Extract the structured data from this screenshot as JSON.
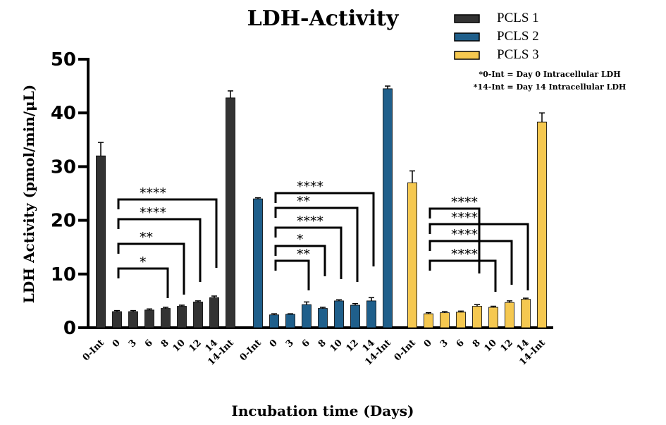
{
  "chart_data": {
    "type": "bar",
    "title": "LDH-Activity",
    "ylabel": "LDH Activity (pmol/min/μL)",
    "xlabel": "Incubation time (Days)",
    "ylim": [
      0,
      50
    ],
    "yticks": [
      0,
      10,
      20,
      30,
      40,
      50
    ],
    "categories": [
      "0-Int",
      "0",
      "3",
      "6",
      "8",
      "10",
      "12",
      "14",
      "14-Int"
    ],
    "legend_position": "top-right",
    "series": [
      {
        "name": "PCLS 1",
        "color": "#333333",
        "values": [
          32.0,
          3.0,
          3.0,
          3.3,
          3.6,
          4.0,
          4.8,
          5.6,
          42.8
        ],
        "errors": [
          2.5,
          0.2,
          0.2,
          0.2,
          0.2,
          0.2,
          0.2,
          0.3,
          1.3
        ],
        "significance": [
          {
            "from": "0",
            "to": "8",
            "label": "*"
          },
          {
            "from": "0",
            "to": "10",
            "label": "**"
          },
          {
            "from": "0",
            "to": "12",
            "label": "****"
          },
          {
            "from": "0",
            "to": "14",
            "label": "****"
          }
        ]
      },
      {
        "name": "PCLS 2",
        "color": "#1f5f8b",
        "values": [
          24.0,
          2.4,
          2.5,
          4.3,
          3.6,
          5.0,
          4.2,
          5.0,
          44.5
        ],
        "errors": [
          0.2,
          0.2,
          0.1,
          0.5,
          0.2,
          0.2,
          0.3,
          0.6,
          0.5
        ],
        "significance": [
          {
            "from": "0",
            "to": "6",
            "label": "**"
          },
          {
            "from": "0",
            "to": "8",
            "label": "*"
          },
          {
            "from": "0",
            "to": "10",
            "label": "****"
          },
          {
            "from": "0",
            "to": "12",
            "label": "**"
          },
          {
            "from": "0",
            "to": "14",
            "label": "****"
          }
        ]
      },
      {
        "name": "PCLS 3",
        "color": "#f5c850",
        "values": [
          27.0,
          2.6,
          2.8,
          2.9,
          4.0,
          3.8,
          4.7,
          5.3,
          38.3
        ],
        "errors": [
          2.2,
          0.2,
          0.2,
          0.2,
          0.3,
          0.2,
          0.3,
          0.2,
          1.7
        ],
        "significance": [
          {
            "from": "0",
            "to": "10",
            "label": "****"
          },
          {
            "from": "0",
            "to": "12",
            "label": "****"
          },
          {
            "from": "0",
            "to": "14",
            "label": "****"
          },
          {
            "from": "0",
            "to": "8",
            "label": "****"
          }
        ]
      }
    ],
    "annotations": [
      "*0-Int = Day 0 Intracellular LDH",
      "*14-Int = Day 14 Intracellular LDH"
    ]
  }
}
